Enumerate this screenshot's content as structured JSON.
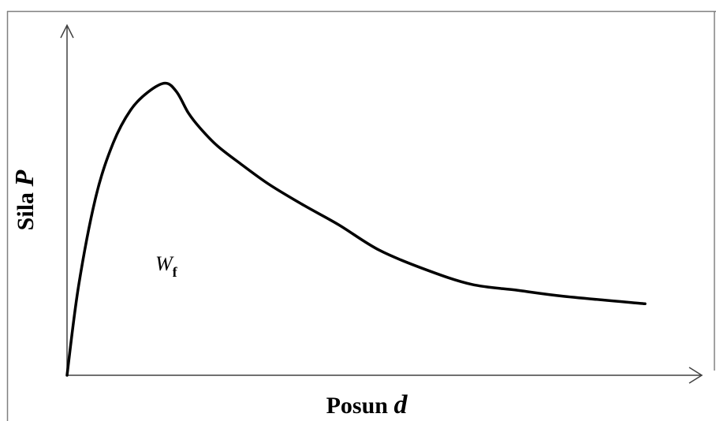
{
  "chart_data": {
    "type": "line",
    "title": "",
    "xlabel": {
      "text": "Posun ",
      "variable": "d"
    },
    "ylabel": {
      "text": "Sila ",
      "variable": "P"
    },
    "area_annotation": {
      "symbol": "W",
      "subscript": "f"
    },
    "ticks": "none",
    "grid": false,
    "legend": "none",
    "xlim": [
      0,
      100
    ],
    "ylim": [
      0,
      100
    ],
    "series": [
      {
        "color": "#000000",
        "x": [
          0,
          2,
          5,
          8,
          11,
          14,
          17,
          19,
          21,
          23,
          26,
          30,
          35,
          41,
          47,
          54,
          62,
          70,
          78,
          86,
          100
        ],
        "y": [
          0,
          30,
          60,
          78,
          89,
          95,
          98,
          95,
          88,
          83,
          77,
          71,
          64,
          57,
          50.5,
          42,
          35.5,
          30.5,
          28.5,
          26.5,
          24
        ]
      }
    ]
  }
}
